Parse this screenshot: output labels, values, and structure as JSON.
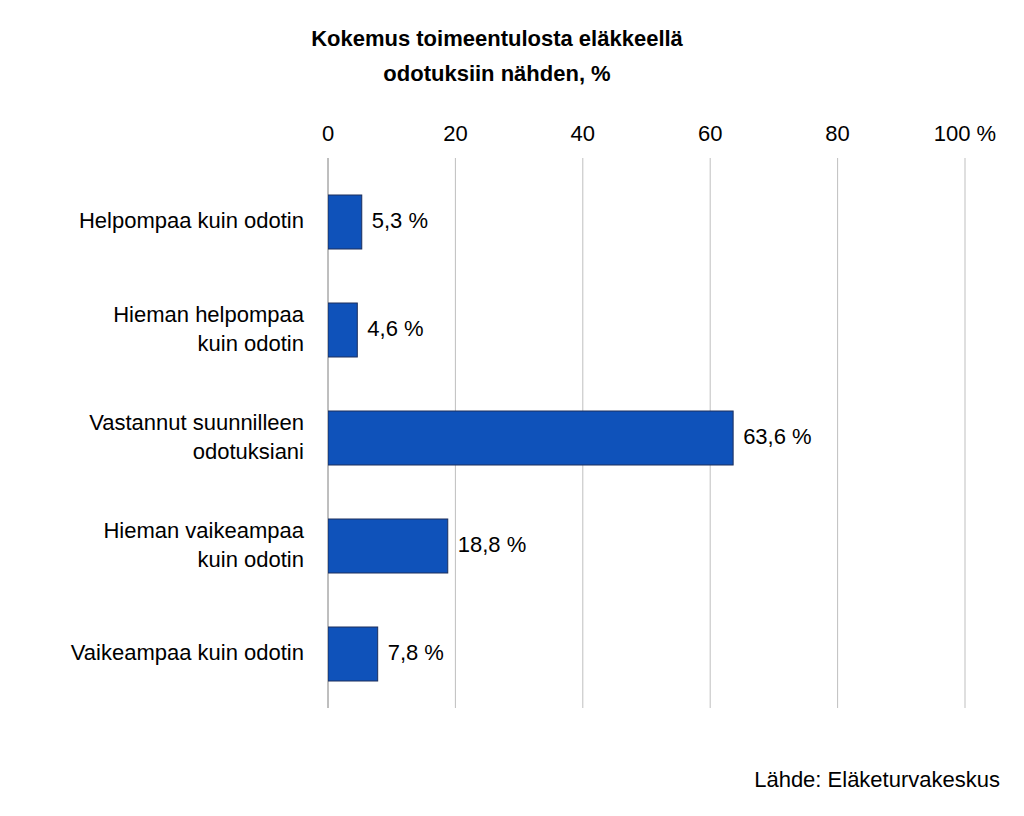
{
  "chart_data": {
    "type": "bar",
    "orientation": "horizontal",
    "title": "Kokemus toimeentulosta eläkkeellä\nodotuksiin nähden, %",
    "categories": [
      "Helpompaa kuin odotin",
      "Hieman helpompaa\nkuin odotin",
      "Vastannut suunnilleen\nodotuksiani",
      "Hieman vaikeampaa\nkuin odotin",
      "Vaikeampaa kuin odotin"
    ],
    "values": [
      5.3,
      4.6,
      63.6,
      18.8,
      7.8
    ],
    "value_labels": [
      "5,3 %",
      "4,6 %",
      "63,6 %",
      "18,8 %",
      "7,8 %"
    ],
    "color": "#0f52ba",
    "xlim": [
      0,
      100
    ],
    "xticks": [
      0,
      20,
      40,
      60,
      80,
      {
        "value": 100,
        "label": "100 %"
      }
    ],
    "grid": true,
    "data_labels": true,
    "source": "Lähde: Eläketurvakeskus"
  }
}
